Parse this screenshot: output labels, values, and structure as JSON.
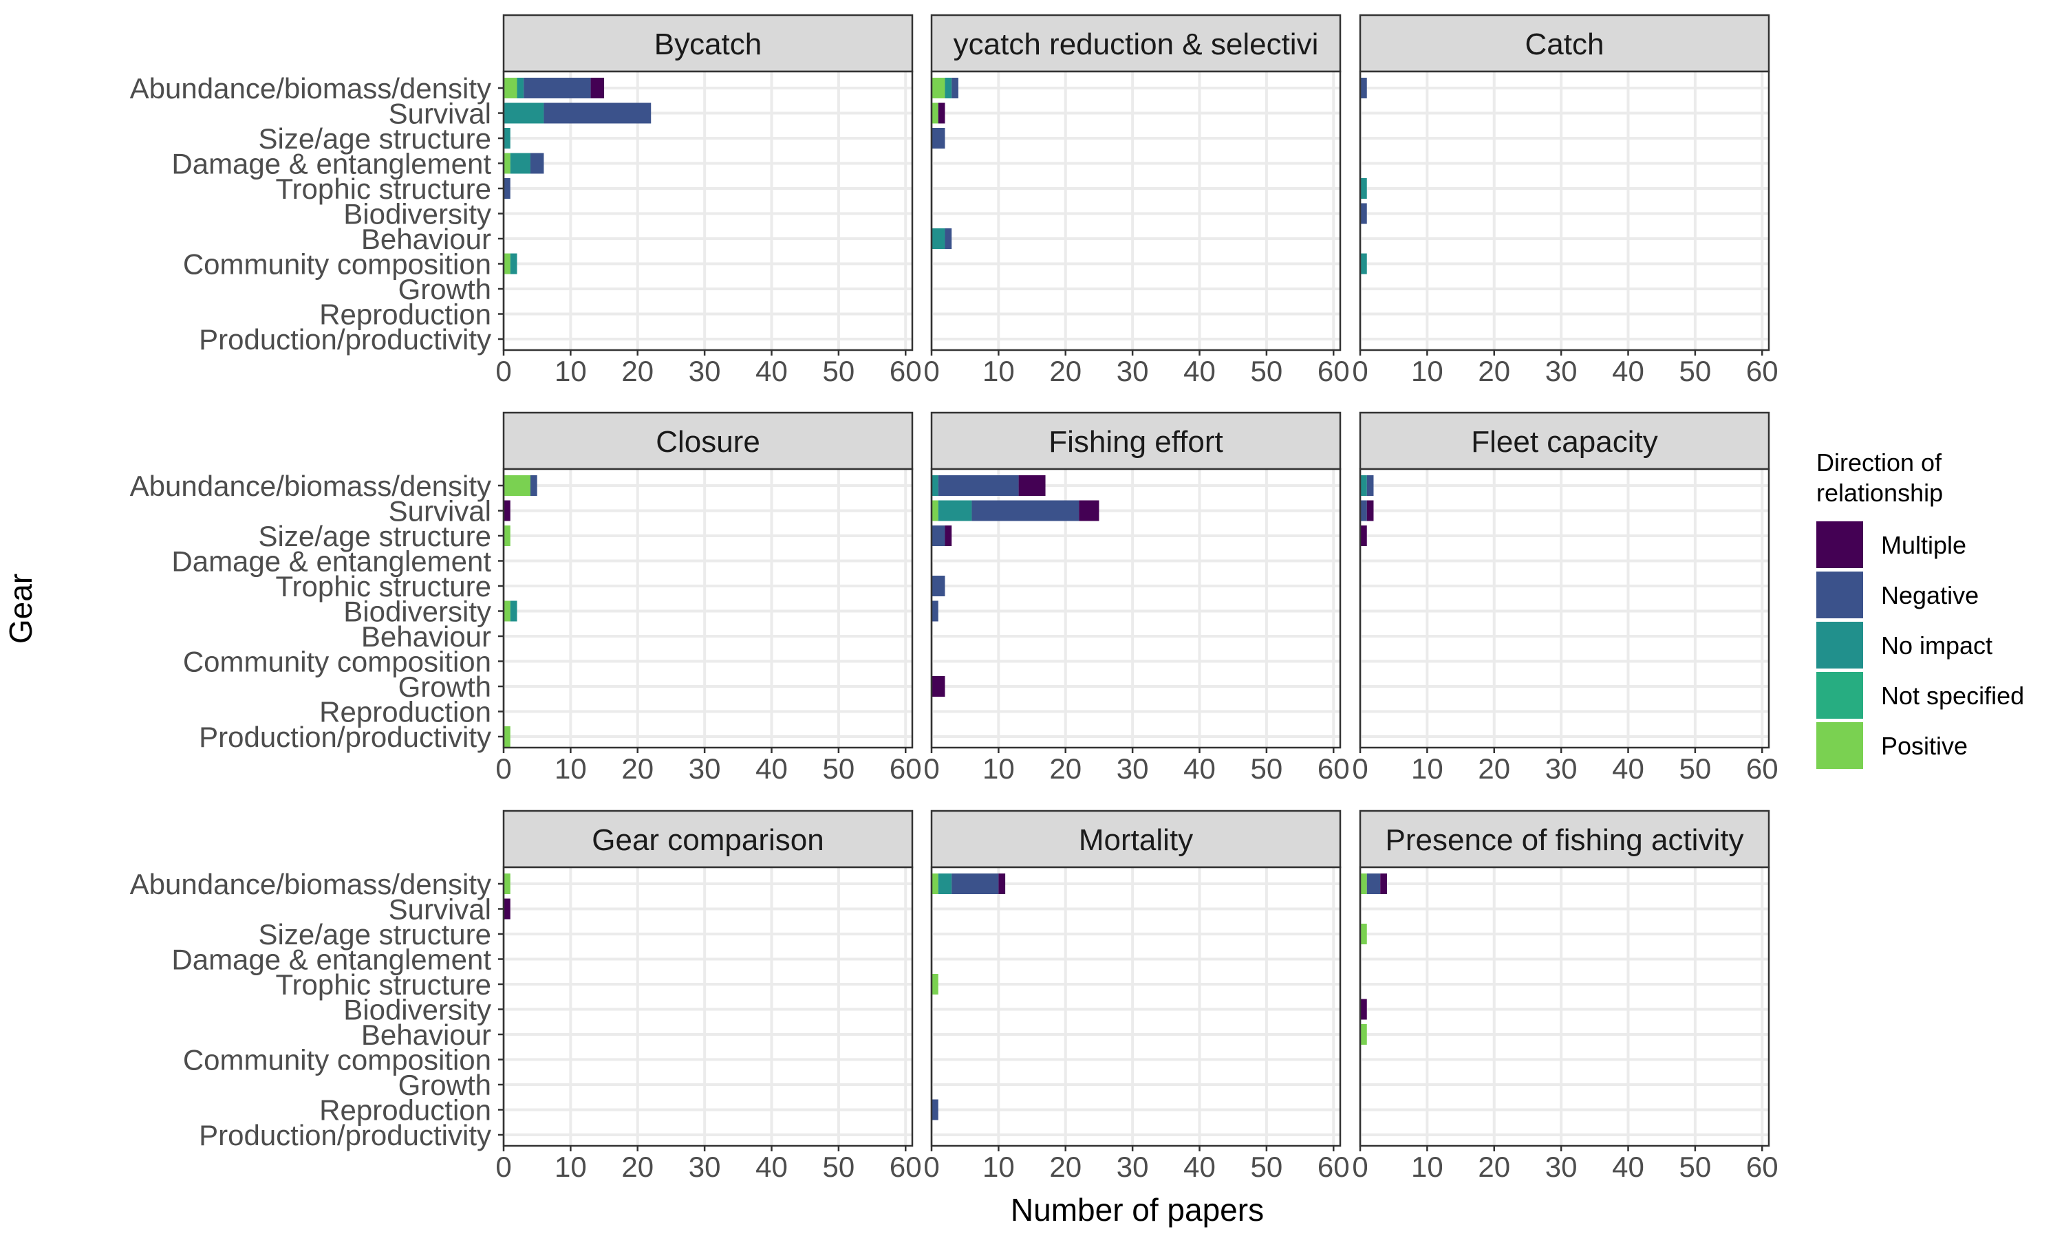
{
  "chart_data": {
    "type": "bar",
    "orientation": "horizontal",
    "stacked": true,
    "xlabel": "Number of papers",
    "ylabel": "Gear",
    "xlim": [
      0,
      61
    ],
    "xticks": [
      0,
      10,
      20,
      30,
      40,
      50,
      60
    ],
    "grid": true,
    "legend": {
      "title": "Direction of relationship",
      "title_lines": [
        "Direction of",
        "relationship"
      ],
      "placement": "right",
      "entries": [
        {
          "name": "Multiple",
          "color": "#440154"
        },
        {
          "name": "Negative",
          "color": "#3B528B"
        },
        {
          "name": "No impact",
          "color": "#21908C"
        },
        {
          "name": "Not specified",
          "color": "#27AD81"
        },
        {
          "name": "Positive",
          "color": "#7AD151"
        }
      ]
    },
    "stack_order": [
      "Positive",
      "Not specified",
      "No impact",
      "Negative",
      "Multiple"
    ],
    "categories": [
      "Abundance/biomass/density",
      "Survival",
      "Size/age structure",
      "Damage & entanglement",
      "Trophic structure",
      "Biodiversity",
      "Behaviour",
      "Community composition",
      "Growth",
      "Reproduction",
      "Production/productivity"
    ],
    "panels": [
      {
        "title": "Bycatch",
        "values": {
          "Positive": [
            2,
            0,
            0,
            1,
            0,
            0,
            0,
            1,
            0,
            0,
            0
          ],
          "Not specified": [
            0,
            0,
            0,
            0,
            0,
            0,
            0,
            0,
            0,
            0,
            0
          ],
          "No impact": [
            1,
            6,
            1,
            3,
            0,
            0,
            0,
            1,
            0,
            0,
            0
          ],
          "Negative": [
            10,
            16,
            0,
            2,
            1,
            0,
            0,
            0,
            0,
            0,
            0
          ],
          "Multiple": [
            2,
            0,
            0,
            0,
            0,
            0,
            0,
            0,
            0,
            0,
            0
          ]
        }
      },
      {
        "title": "ycatch reduction & selectivi",
        "values": {
          "Positive": [
            2,
            1,
            0,
            0,
            0,
            0,
            0,
            0,
            0,
            0,
            0
          ],
          "Not specified": [
            0,
            0,
            0,
            0,
            0,
            0,
            0,
            0,
            0,
            0,
            0
          ],
          "No impact": [
            1,
            0,
            0,
            0,
            0,
            0,
            2,
            0,
            0,
            0,
            0
          ],
          "Negative": [
            1,
            0,
            2,
            0,
            0,
            0,
            1,
            0,
            0,
            0,
            0
          ],
          "Multiple": [
            0,
            1,
            0,
            0,
            0,
            0,
            0,
            0,
            0,
            0,
            0
          ]
        }
      },
      {
        "title": "Catch",
        "values": {
          "Positive": [
            0,
            0,
            0,
            0,
            0,
            0,
            0,
            0,
            0,
            0,
            0
          ],
          "Not specified": [
            0,
            0,
            0,
            0,
            0,
            0,
            0,
            0,
            0,
            0,
            0
          ],
          "No impact": [
            0,
            0,
            0,
            0,
            1,
            0,
            0,
            1,
            0,
            0,
            0
          ],
          "Negative": [
            1,
            0,
            0,
            0,
            0,
            1,
            0,
            0,
            0,
            0,
            0
          ],
          "Multiple": [
            0,
            0,
            0,
            0,
            0,
            0,
            0,
            0,
            0,
            0,
            0
          ]
        }
      },
      {
        "title": "Closure",
        "values": {
          "Positive": [
            4,
            0,
            1,
            0,
            0,
            1,
            0,
            0,
            0,
            0,
            1
          ],
          "Not specified": [
            0,
            0,
            0,
            0,
            0,
            0,
            0,
            0,
            0,
            0,
            0
          ],
          "No impact": [
            0,
            0,
            0,
            0,
            0,
            1,
            0,
            0,
            0,
            0,
            0
          ],
          "Negative": [
            1,
            0,
            0,
            0,
            0,
            0,
            0,
            0,
            0,
            0,
            0
          ],
          "Multiple": [
            0,
            1,
            0,
            0,
            0,
            0,
            0,
            0,
            0,
            0,
            0
          ]
        }
      },
      {
        "title": "Fishing effort",
        "values": {
          "Positive": [
            0,
            1,
            0,
            0,
            0,
            0,
            0,
            0,
            0,
            0,
            0
          ],
          "Not specified": [
            0,
            0,
            0,
            0,
            0,
            0,
            0,
            0,
            0,
            0,
            0
          ],
          "No impact": [
            1,
            5,
            0,
            0,
            0,
            0,
            0,
            0,
            0,
            0,
            0
          ],
          "Negative": [
            12,
            16,
            2,
            0,
            2,
            1,
            0,
            0,
            0,
            0,
            0
          ],
          "Multiple": [
            4,
            3,
            1,
            0,
            0,
            0,
            0,
            0,
            2,
            0,
            0
          ]
        }
      },
      {
        "title": "Fleet capacity",
        "values": {
          "Positive": [
            0,
            0,
            0,
            0,
            0,
            0,
            0,
            0,
            0,
            0,
            0
          ],
          "Not specified": [
            0,
            0,
            0,
            0,
            0,
            0,
            0,
            0,
            0,
            0,
            0
          ],
          "No impact": [
            1,
            0,
            0,
            0,
            0,
            0,
            0,
            0,
            0,
            0,
            0
          ],
          "Negative": [
            1,
            1,
            0,
            0,
            0,
            0,
            0,
            0,
            0,
            0,
            0
          ],
          "Multiple": [
            0,
            1,
            1,
            0,
            0,
            0,
            0,
            0,
            0,
            0,
            0
          ]
        }
      },
      {
        "title": "Gear comparison",
        "values": {
          "Positive": [
            1,
            0,
            0,
            0,
            0,
            0,
            0,
            0,
            0,
            0,
            0
          ],
          "Not specified": [
            0,
            0,
            0,
            0,
            0,
            0,
            0,
            0,
            0,
            0,
            0
          ],
          "No impact": [
            0,
            0,
            0,
            0,
            0,
            0,
            0,
            0,
            0,
            0,
            0
          ],
          "Negative": [
            0,
            0,
            0,
            0,
            0,
            0,
            0,
            0,
            0,
            0,
            0
          ],
          "Multiple": [
            0,
            1,
            0,
            0,
            0,
            0,
            0,
            0,
            0,
            0,
            0
          ]
        }
      },
      {
        "title": "Mortality",
        "values": {
          "Positive": [
            1,
            0,
            0,
            0,
            1,
            0,
            0,
            0,
            0,
            0,
            0
          ],
          "Not specified": [
            0,
            0,
            0,
            0,
            0,
            0,
            0,
            0,
            0,
            0,
            0
          ],
          "No impact": [
            2,
            0,
            0,
            0,
            0,
            0,
            0,
            0,
            0,
            0,
            0
          ],
          "Negative": [
            7,
            0,
            0,
            0,
            0,
            0,
            0,
            0,
            0,
            1,
            0
          ],
          "Multiple": [
            1,
            0,
            0,
            0,
            0,
            0,
            0,
            0,
            0,
            0,
            0
          ]
        }
      },
      {
        "title": "Presence of fishing activity",
        "values": {
          "Positive": [
            1,
            0,
            1,
            0,
            0,
            0,
            1,
            0,
            0,
            0,
            0
          ],
          "Not specified": [
            0,
            0,
            0,
            0,
            0,
            0,
            0,
            0,
            0,
            0,
            0
          ],
          "No impact": [
            0,
            0,
            0,
            0,
            0,
            0,
            0,
            0,
            0,
            0,
            0
          ],
          "Negative": [
            2,
            0,
            0,
            0,
            0,
            0,
            0,
            0,
            0,
            0,
            0
          ],
          "Multiple": [
            1,
            0,
            0,
            0,
            0,
            1,
            0,
            0,
            0,
            0,
            0
          ]
        }
      }
    ]
  }
}
